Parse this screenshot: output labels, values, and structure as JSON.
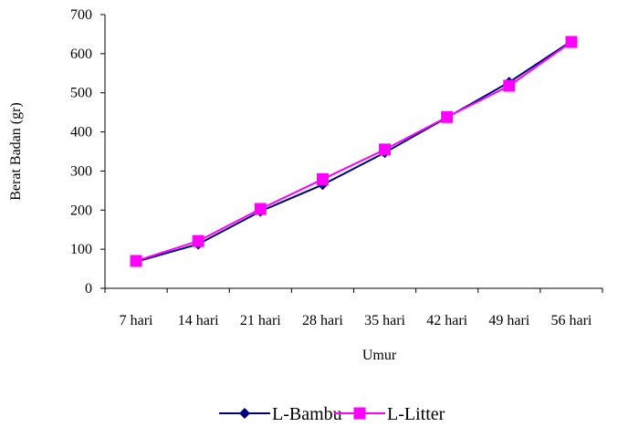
{
  "chart_data": {
    "type": "line",
    "title": "",
    "xlabel": "Umur",
    "ylabel": "Berat Badan (gr)",
    "categories": [
      "7 hari",
      "14 hari",
      "21 hari",
      "28 hari",
      "35 hari",
      "42 hari",
      "49 hari",
      "56 hari"
    ],
    "ylim": [
      0,
      700
    ],
    "yticks": [
      0,
      100,
      200,
      300,
      400,
      500,
      600,
      700
    ],
    "grid": false,
    "legend_position": "bottom",
    "series": [
      {
        "name": "L-Bambu",
        "color": "#000080",
        "marker": "diamond",
        "values": [
          68,
          113,
          197,
          265,
          347,
          437,
          527,
          632
        ]
      },
      {
        "name": "L-Litter",
        "color": "#FF00FF",
        "marker": "square",
        "values": [
          70,
          121,
          203,
          279,
          355,
          438,
          518,
          630
        ]
      }
    ]
  }
}
